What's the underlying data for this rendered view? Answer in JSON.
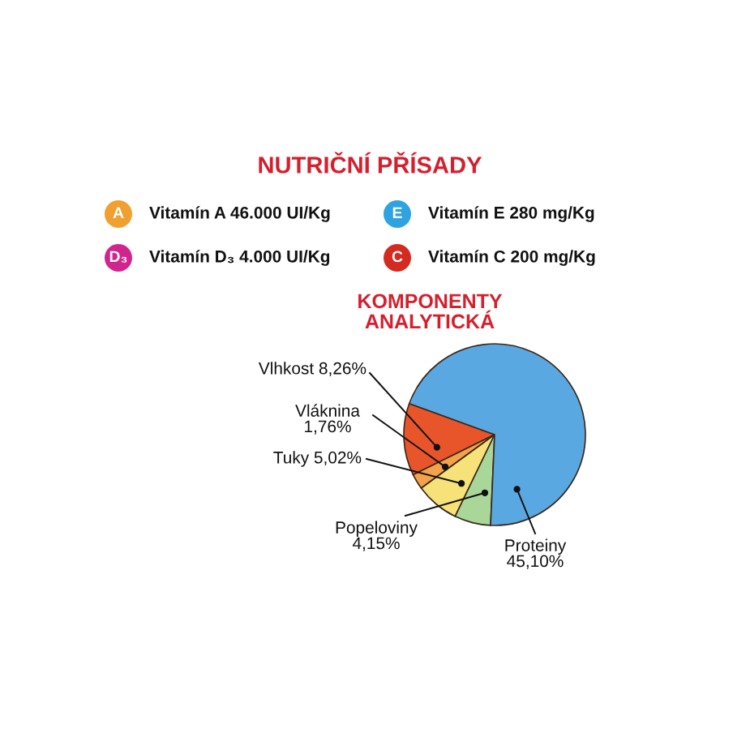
{
  "chart_data": [
    {
      "type": "other",
      "title": "NUTRIČNÍ PŘÍSADY",
      "categories": [
        "A",
        "E",
        "D₃",
        "C"
      ],
      "colors": [
        "#f0a030",
        "#2fa3e0",
        "#d1258e",
        "#d42a20"
      ],
      "annotations": [
        "Vitamín A 46.000 UI/Kg",
        "Vitamín E 280 mg/Kg",
        "Vitamín D₃ 4.000 UI/Kg",
        "Vitamín C 200 mg/Kg"
      ]
    },
    {
      "type": "pie",
      "title": "KOMPONENTY ANALYTICKÁ",
      "categories": [
        "Vlhkost",
        "Vláknina",
        "Tuky",
        "Popeloviny",
        "Proteiny"
      ],
      "values": [
        8.26,
        1.76,
        5.02,
        4.15,
        45.1
      ],
      "value_labels": [
        "8,26%",
        "1,76%",
        "5,02%",
        "4,15%",
        "45,10%"
      ],
      "colors": [
        "#e8552b",
        "#f3a24a",
        "#f7e27a",
        "#a9d79a",
        "#5aa8e2"
      ]
    }
  ]
}
